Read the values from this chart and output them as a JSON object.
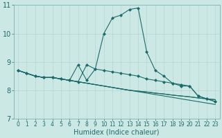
{
  "xlabel": "Humidex (Indice chaleur)",
  "xlim": [
    -0.5,
    23.5
  ],
  "ylim": [
    7,
    11
  ],
  "yticks": [
    7,
    8,
    9,
    10,
    11
  ],
  "xticks": [
    0,
    1,
    2,
    3,
    4,
    5,
    6,
    7,
    8,
    9,
    10,
    11,
    12,
    13,
    14,
    15,
    16,
    17,
    18,
    19,
    20,
    21,
    22,
    23
  ],
  "bg_color": "#cce8e4",
  "line_color": "#1a6b6b",
  "grid_color": "#b8d4d0",
  "lines": [
    {
      "x": [
        0,
        1,
        2,
        3,
        4,
        5,
        6,
        7,
        8,
        9,
        10,
        11,
        12,
        13,
        14,
        15,
        16,
        17,
        18,
        19,
        20,
        21,
        22,
        23
      ],
      "y": [
        8.7,
        8.6,
        8.5,
        8.45,
        8.45,
        8.4,
        8.35,
        8.3,
        8.9,
        8.75,
        10.0,
        10.55,
        10.65,
        10.85,
        10.9,
        9.35,
        8.7,
        8.5,
        8.25,
        8.15,
        8.15,
        7.8,
        7.7,
        7.6
      ],
      "marker": "D",
      "markersize": 2.0,
      "lw": 0.8
    },
    {
      "x": [
        0,
        1,
        2,
        3,
        4,
        5,
        6,
        7,
        8,
        9,
        10,
        11,
        12,
        13,
        14,
        15,
        16,
        17,
        18,
        19,
        20,
        21,
        22,
        23
      ],
      "y": [
        8.7,
        8.6,
        8.5,
        8.45,
        8.45,
        8.4,
        8.35,
        8.9,
        8.35,
        8.75,
        8.7,
        8.65,
        8.6,
        8.55,
        8.5,
        8.4,
        8.35,
        8.3,
        8.25,
        8.2,
        8.15,
        7.8,
        7.7,
        7.6
      ],
      "marker": "D",
      "markersize": 2.0,
      "lw": 0.8
    },
    {
      "x": [
        0,
        1,
        2,
        3,
        4,
        5,
        6,
        7,
        8,
        9,
        10,
        11,
        12,
        13,
        14,
        15,
        16,
        17,
        18,
        19,
        20,
        21,
        22,
        23
      ],
      "y": [
        8.7,
        8.6,
        8.5,
        8.45,
        8.45,
        8.4,
        8.35,
        8.3,
        8.25,
        8.2,
        8.15,
        8.1,
        8.05,
        8.0,
        7.95,
        7.9,
        7.85,
        7.8,
        7.75,
        7.7,
        7.65,
        7.6,
        7.55,
        7.5
      ],
      "marker": null,
      "markersize": 0,
      "lw": 0.8
    },
    {
      "x": [
        0,
        1,
        2,
        3,
        4,
        5,
        6,
        7,
        8,
        9,
        10,
        11,
        12,
        13,
        14,
        15,
        16,
        17,
        18,
        19,
        20,
        21,
        22,
        23
      ],
      "y": [
        8.7,
        8.6,
        8.5,
        8.45,
        8.45,
        8.4,
        8.35,
        8.3,
        8.25,
        8.2,
        8.15,
        8.1,
        8.05,
        8.0,
        7.97,
        7.94,
        7.9,
        7.87,
        7.83,
        7.8,
        7.77,
        7.73,
        7.7,
        7.67
      ],
      "marker": null,
      "markersize": 0,
      "lw": 0.8
    },
    {
      "x": [
        0,
        1,
        2,
        3,
        4,
        5,
        6,
        7,
        8,
        9,
        10,
        11,
        12,
        13,
        14,
        15,
        16,
        17,
        18,
        19,
        20,
        21,
        22,
        23
      ],
      "y": [
        8.7,
        8.6,
        8.5,
        8.45,
        8.45,
        8.4,
        8.35,
        8.3,
        8.25,
        8.2,
        8.15,
        8.1,
        8.05,
        8.0,
        7.97,
        7.94,
        7.9,
        7.87,
        7.83,
        7.8,
        7.77,
        7.73,
        7.7,
        7.67
      ],
      "marker": null,
      "markersize": 0,
      "lw": 0.8
    }
  ]
}
